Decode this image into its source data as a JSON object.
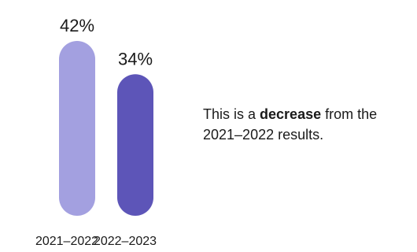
{
  "chart_data": {
    "type": "bar",
    "categories": [
      "2021–2022",
      "2022–2023"
    ],
    "values": [
      42,
      34
    ],
    "value_labels": [
      "42%",
      "34%"
    ],
    "colors": [
      "#a3a0e0",
      "#5d55b8"
    ],
    "ylim": [
      0,
      42
    ],
    "grid": false
  },
  "annotation": {
    "before": "This is a ",
    "emphasis": "decrease",
    "after": " from the 2021–2022 results."
  }
}
